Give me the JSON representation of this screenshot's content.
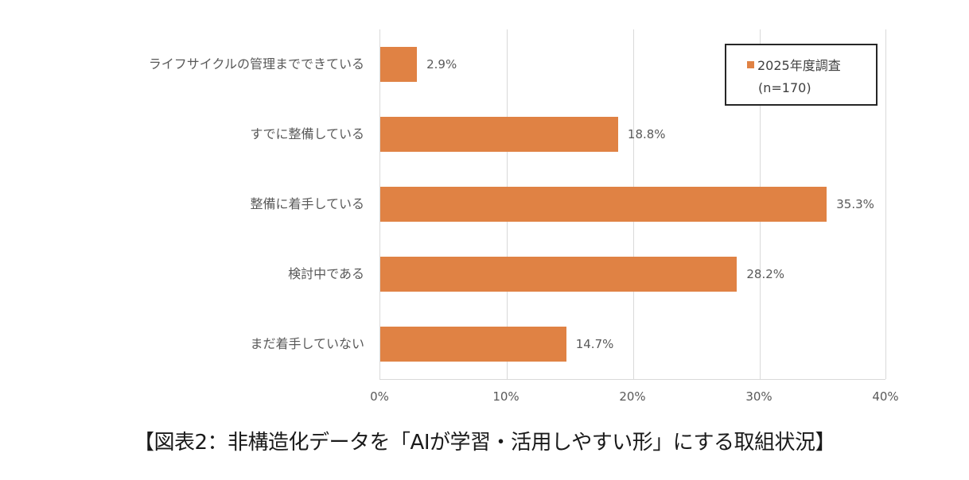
{
  "chart_data": {
    "type": "bar",
    "orientation": "horizontal",
    "title": "【図表2：非構造化データを「AIが学習・活用しやすい形」にする取組状況】",
    "categories": [
      "ライフサイクルの管理までできている",
      "すでに整備している",
      "整備に着手している",
      "検討中である",
      "まだ着手していない"
    ],
    "series": [
      {
        "name": "2025年度調査",
        "note": "(n=170)",
        "color": "#E08244",
        "values": [
          2.9,
          18.8,
          35.3,
          28.2,
          14.7
        ],
        "value_labels": [
          "2.9%",
          "18.8%",
          "35.3%",
          "28.2%",
          "14.7%"
        ]
      }
    ],
    "xlabel": "",
    "ylabel": "",
    "xlim": [
      0,
      40
    ],
    "x_ticks": [
      "0%",
      "10%",
      "20%",
      "30%",
      "40%"
    ],
    "grid": "vertical",
    "legend_position": "top-right inside plot"
  },
  "legend": {
    "label": "2025年度調査",
    "sample": "(n=170)"
  },
  "caption": "【図表2：非構造化データを「AIが学習・活用しやすい形」にする取組状況】"
}
